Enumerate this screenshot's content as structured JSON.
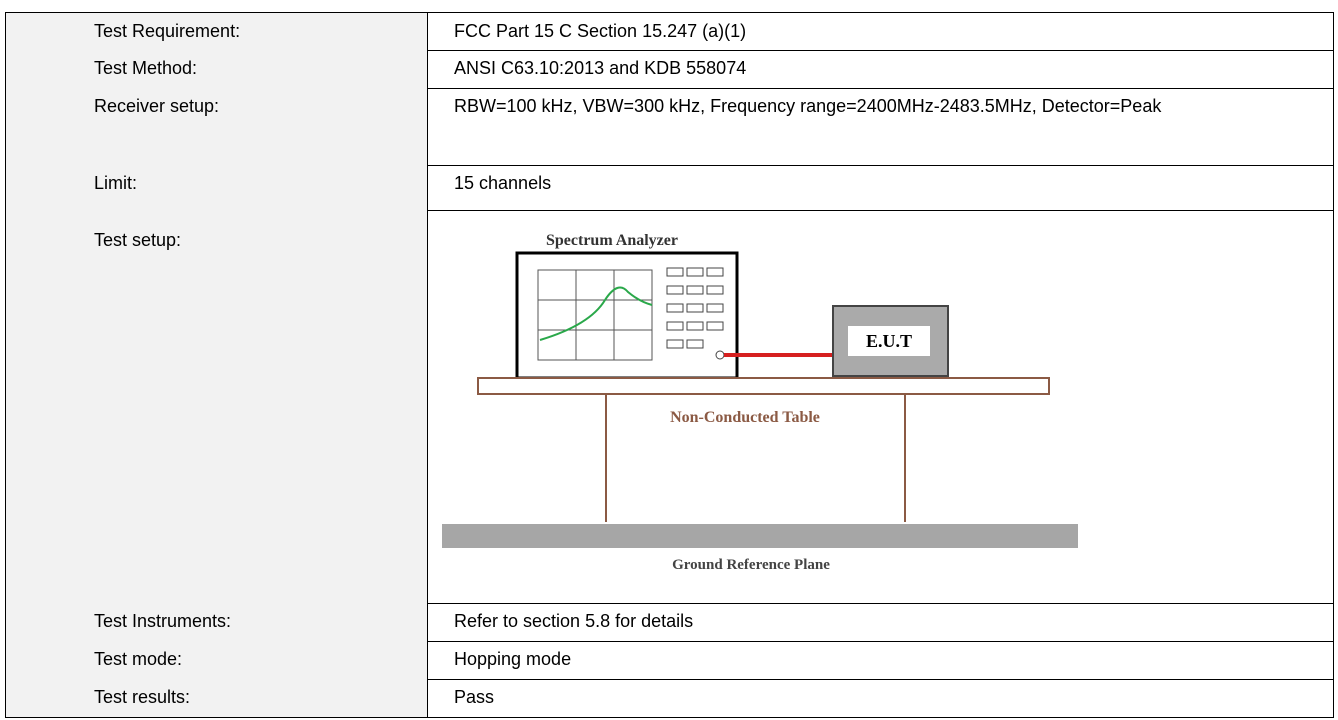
{
  "table": {
    "rows": [
      [
        "Test Requirement:",
        "FCC Part 15 C Section 15.247 (a)(1)"
      ],
      [
        "Test Method:",
        "ANSI C63.10:2013 and KDB 558074"
      ],
      [
        "Receiver setup:",
        "RBW=100 kHz, VBW=300 kHz, Frequency range=2400MHz-2483.5MHz, Detector=Peak"
      ],
      [
        "Limit:",
        "15 channels"
      ],
      [
        "Test setup:",
        ""
      ],
      [
        "Test Instruments:",
        "Refer to section 5.8 for details"
      ],
      [
        "Test mode:",
        "Hopping mode"
      ],
      [
        "Test results:",
        "Pass"
      ]
    ]
  },
  "diagram": {
    "analyzer": "Spectrum Analyzer",
    "eut": "E.U.T",
    "table": "Non-Conducted Table",
    "ground": "Ground Reference Plane"
  }
}
